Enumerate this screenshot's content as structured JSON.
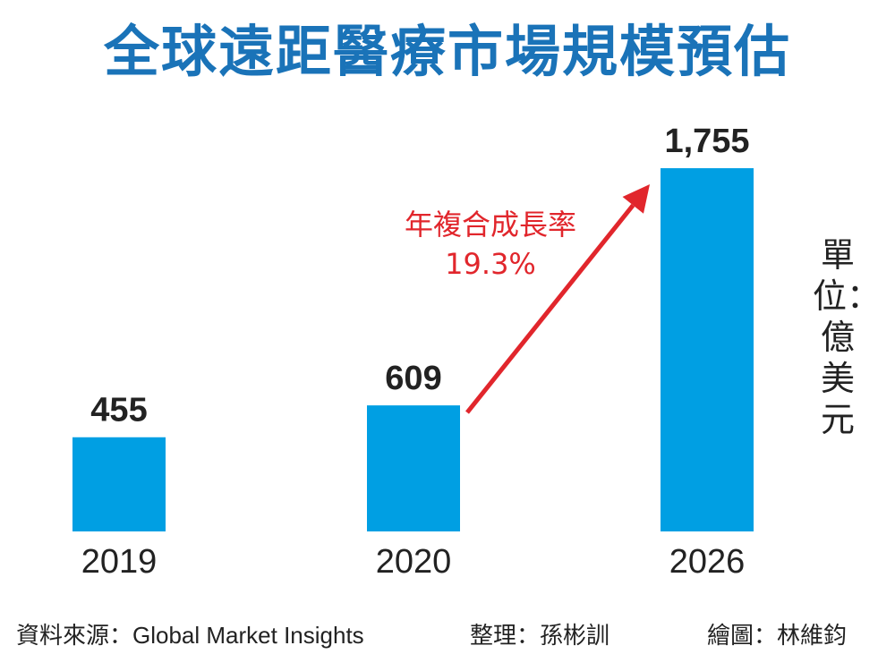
{
  "chart_data": {
    "type": "bar",
    "title": "全球遠距醫療市場規模預估",
    "categories": [
      "2019",
      "2020",
      "2026"
    ],
    "values": [
      455,
      609,
      1755
    ],
    "value_labels": [
      "455",
      "609",
      "1,755"
    ],
    "unit_label": "單位：億美元",
    "annotation": {
      "line1": "年複合成長率",
      "line2": "19.3%"
    },
    "bar_color": "#009fe3",
    "arrow_color": "#e1262c",
    "title_color": "#1a73b8",
    "ylim": [
      0,
      1755
    ]
  },
  "footer": {
    "source": "資料來源：Global Market Insights",
    "editor": "整理：孫彬訓",
    "drawer": "繪圖：林維鈞"
  }
}
